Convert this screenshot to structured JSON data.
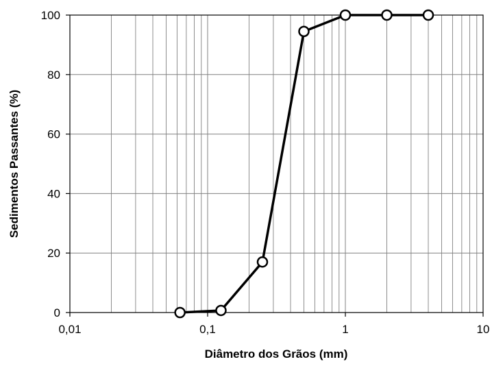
{
  "chart_data": {
    "type": "line",
    "title": "",
    "xlabel": "Diâmetro dos Grãos (mm)",
    "ylabel": "Sedimentos Passantes (%)",
    "x_scale": "log",
    "xlim": [
      0.01,
      10
    ],
    "ylim": [
      0,
      100
    ],
    "x_ticks": [
      0.01,
      0.1,
      1,
      10
    ],
    "x_tick_labels": [
      "0,01",
      "0,1",
      "1",
      "10"
    ],
    "y_ticks": [
      0,
      20,
      40,
      60,
      80,
      100
    ],
    "y_tick_labels": [
      "0",
      "20",
      "40",
      "60",
      "80",
      "100"
    ],
    "grid": true,
    "legend": "none",
    "series": [
      {
        "x": [
          0.063,
          0.125,
          0.25,
          0.5,
          1,
          2,
          4
        ],
        "y": [
          0,
          0.7,
          17,
          94.5,
          100,
          100,
          100
        ],
        "color": "#000000",
        "marker": "open-circle"
      }
    ]
  }
}
